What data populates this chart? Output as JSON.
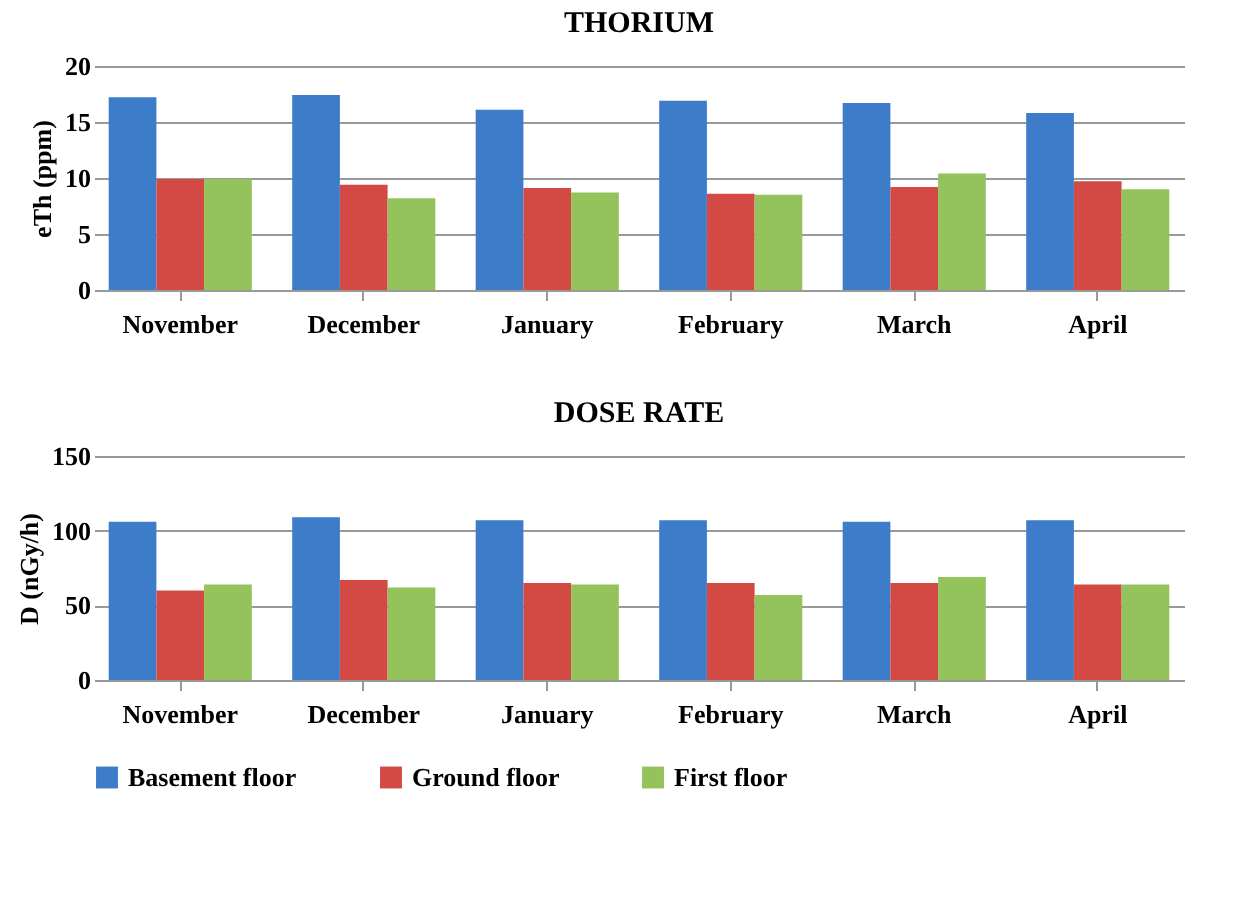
{
  "chart_data": [
    {
      "type": "bar",
      "title": "THORIUM",
      "ylabel": "eTh (ppm)",
      "categories": [
        "November",
        "December",
        "January",
        "February",
        "March",
        "April"
      ],
      "ylim": [
        0,
        20
      ],
      "yticks": [
        0,
        5,
        10,
        15,
        20
      ],
      "grid": "y",
      "legend": "bottom",
      "series": [
        {
          "name": "Basement floor",
          "color": "#3d7cc9",
          "values": [
            17.2,
            17.4,
            16.1,
            16.9,
            16.7,
            15.8
          ]
        },
        {
          "name": "Ground floor",
          "color": "#d24a43",
          "values": [
            9.9,
            9.4,
            9.1,
            8.6,
            9.2,
            9.7
          ]
        },
        {
          "name": "First floor",
          "color": "#93c35a",
          "values": [
            9.9,
            8.2,
            8.7,
            8.5,
            10.4,
            9.0
          ]
        }
      ]
    },
    {
      "type": "bar",
      "title": "DOSE RATE",
      "ylabel": "D (nGy/h)",
      "categories": [
        "November",
        "December",
        "January",
        "February",
        "March",
        "April"
      ],
      "ylim": [
        0,
        150
      ],
      "yticks": [
        0,
        50,
        100,
        150
      ],
      "grid": "y",
      "legend": "bottom",
      "series": [
        {
          "name": "Basement floor",
          "color": "#3d7cc9",
          "values": [
            106,
            109,
            107,
            107,
            106,
            107
          ]
        },
        {
          "name": "Ground floor",
          "color": "#d24a43",
          "values": [
            60,
            67,
            65,
            65,
            65,
            64
          ]
        },
        {
          "name": "First floor",
          "color": "#93c35a",
          "values": [
            64,
            62,
            64,
            57,
            69,
            64
          ]
        }
      ]
    }
  ]
}
